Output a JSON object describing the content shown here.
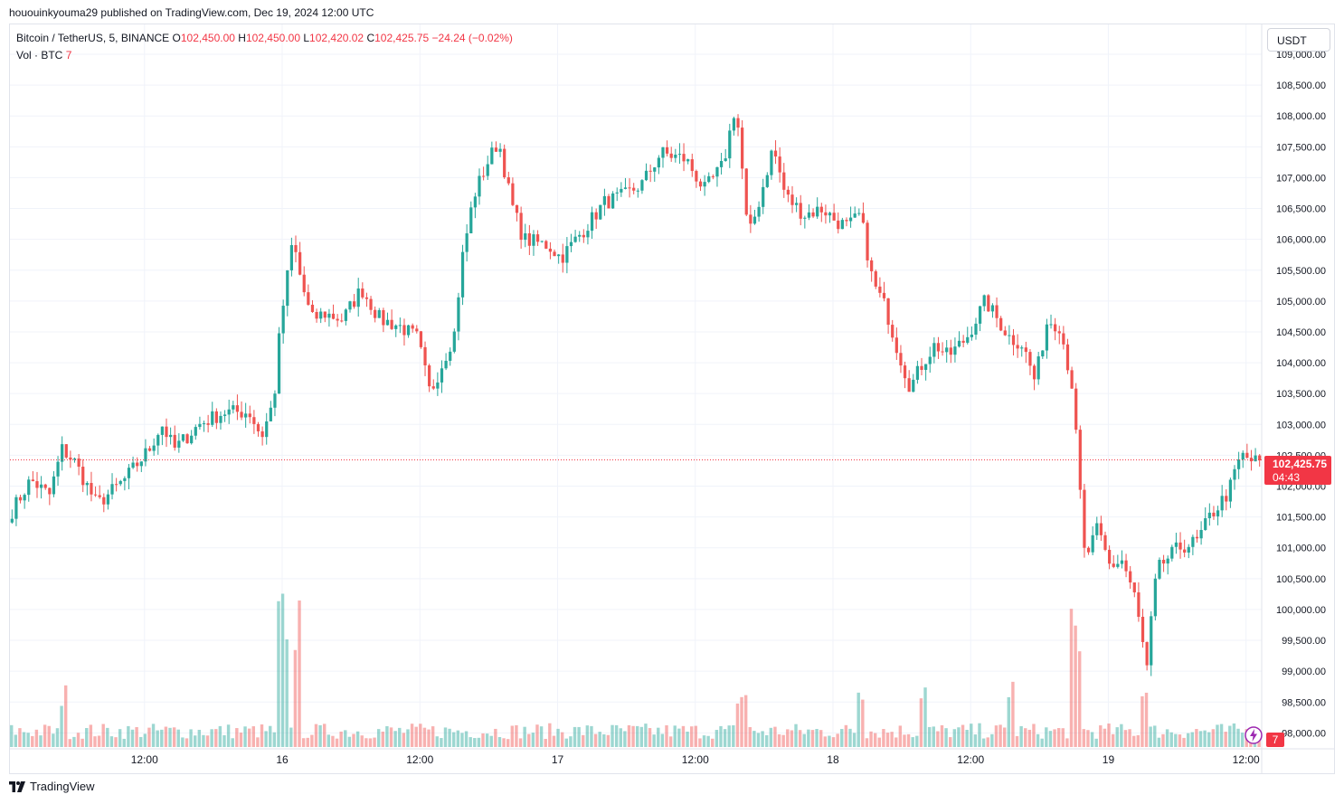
{
  "header": {
    "published": "hououinkyouma29 published on TradingView.com, Dec 19, 2024 12:00 UTC"
  },
  "legend": {
    "symbol": "Bitcoin / TetherUS, 5, BINANCE",
    "open_label": "O",
    "open": "102,450.00",
    "high_label": "H",
    "high": "102,450.00",
    "low_label": "L",
    "low": "102,420.02",
    "close_label": "C",
    "close": "102,425.75",
    "change": "−24.24 (−0.02%)",
    "vol_label": "Vol · BTC",
    "vol_value": "7"
  },
  "currency_button": "USDT",
  "last_price": {
    "price": "102,425.75",
    "countdown": "04:43"
  },
  "volume_tag": "7",
  "footer": {
    "brand": "TradingView"
  },
  "colors": {
    "up": "#26a69a",
    "down": "#ef5350",
    "grid": "#f0f3fa",
    "price_line": "#f23645"
  },
  "icons": {
    "footer_logo": "tradingview-logo-icon",
    "bolt": "lightning-icon"
  },
  "chart_data": {
    "type": "candlestick",
    "title": "Bitcoin / TetherUS, 5, BINANCE",
    "ylim": [
      97800,
      109000
    ],
    "y_ticks": [
      98000,
      98500,
      99000,
      99500,
      100000,
      100500,
      101000,
      101500,
      102000,
      102500,
      103000,
      103500,
      104000,
      104500,
      105000,
      105500,
      106000,
      106500,
      107000,
      107500,
      108000,
      108500,
      109000
    ],
    "x_ticks": [
      {
        "pos": 0.1075,
        "label": "12:00"
      },
      {
        "pos": 0.2175,
        "label": "16"
      },
      {
        "pos": 0.3275,
        "label": "12:00"
      },
      {
        "pos": 0.4375,
        "label": "17"
      },
      {
        "pos": 0.5475,
        "label": "12:00"
      },
      {
        "pos": 0.6575,
        "label": "18"
      },
      {
        "pos": 0.7675,
        "label": "12:00"
      },
      {
        "pos": 0.8775,
        "label": "19"
      },
      {
        "pos": 0.9875,
        "label": "12:00"
      }
    ],
    "last_price": 102425.75,
    "path_points": [
      [
        0.0,
        101600
      ],
      [
        0.015,
        102100
      ],
      [
        0.03,
        101850
      ],
      [
        0.04,
        102600
      ],
      [
        0.05,
        102400
      ],
      [
        0.068,
        101700
      ],
      [
        0.09,
        102100
      ],
      [
        0.11,
        102600
      ],
      [
        0.12,
        103000
      ],
      [
        0.13,
        102600
      ],
      [
        0.15,
        103000
      ],
      [
        0.17,
        103200
      ],
      [
        0.19,
        103200
      ],
      [
        0.2,
        102800
      ],
      [
        0.21,
        103400
      ],
      [
        0.215,
        104600
      ],
      [
        0.225,
        106000
      ],
      [
        0.232,
        105300
      ],
      [
        0.24,
        104700
      ],
      [
        0.25,
        104800
      ],
      [
        0.265,
        104700
      ],
      [
        0.28,
        105200
      ],
      [
        0.295,
        104700
      ],
      [
        0.31,
        104600
      ],
      [
        0.325,
        104400
      ],
      [
        0.335,
        103500
      ],
      [
        0.345,
        104000
      ],
      [
        0.355,
        104500
      ],
      [
        0.36,
        105600
      ],
      [
        0.37,
        106700
      ],
      [
        0.38,
        107200
      ],
      [
        0.39,
        107600
      ],
      [
        0.4,
        106600
      ],
      [
        0.41,
        106000
      ],
      [
        0.43,
        105900
      ],
      [
        0.44,
        105700
      ],
      [
        0.46,
        106200
      ],
      [
        0.475,
        106600
      ],
      [
        0.49,
        106700
      ],
      [
        0.505,
        106900
      ],
      [
        0.52,
        107400
      ],
      [
        0.54,
        107300
      ],
      [
        0.555,
        106800
      ],
      [
        0.57,
        107200
      ],
      [
        0.58,
        108200
      ],
      [
        0.585,
        107200
      ],
      [
        0.59,
        106000
      ],
      [
        0.6,
        106700
      ],
      [
        0.61,
        107500
      ],
      [
        0.62,
        106700
      ],
      [
        0.635,
        106400
      ],
      [
        0.65,
        106500
      ],
      [
        0.66,
        106300
      ],
      [
        0.67,
        106200
      ],
      [
        0.68,
        106400
      ],
      [
        0.69,
        105300
      ],
      [
        0.7,
        104900
      ],
      [
        0.71,
        104200
      ],
      [
        0.72,
        103600
      ],
      [
        0.73,
        104000
      ],
      [
        0.74,
        104300
      ],
      [
        0.75,
        104100
      ],
      [
        0.765,
        104400
      ],
      [
        0.78,
        105000
      ],
      [
        0.79,
        104700
      ],
      [
        0.8,
        104400
      ],
      [
        0.81,
        104300
      ],
      [
        0.82,
        103700
      ],
      [
        0.83,
        104700
      ],
      [
        0.84,
        104600
      ],
      [
        0.85,
        103600
      ],
      [
        0.855,
        102200
      ],
      [
        0.86,
        100800
      ],
      [
        0.87,
        101300
      ],
      [
        0.88,
        100700
      ],
      [
        0.89,
        100800
      ],
      [
        0.9,
        100200
      ],
      [
        0.91,
        99000
      ],
      [
        0.915,
        100300
      ],
      [
        0.92,
        100700
      ],
      [
        0.935,
        101000
      ],
      [
        0.95,
        101100
      ],
      [
        0.96,
        101500
      ],
      [
        0.975,
        101900
      ],
      [
        0.985,
        102500
      ],
      [
        0.995,
        102400
      ]
    ],
    "volume_spikes": [
      {
        "pos": 0.218,
        "value": 8
      },
      {
        "pos": 0.229,
        "value": 7.5
      },
      {
        "pos": 0.853,
        "value": 7
      },
      {
        "pos": 0.908,
        "value": 3.3
      },
      {
        "pos": 0.68,
        "value": 3.6
      },
      {
        "pos": 0.73,
        "value": 3.6
      },
      {
        "pos": 0.041,
        "value": 3.2
      },
      {
        "pos": 0.585,
        "value": 3.2
      },
      {
        "pos": 0.8,
        "value": 3.6
      }
    ]
  }
}
